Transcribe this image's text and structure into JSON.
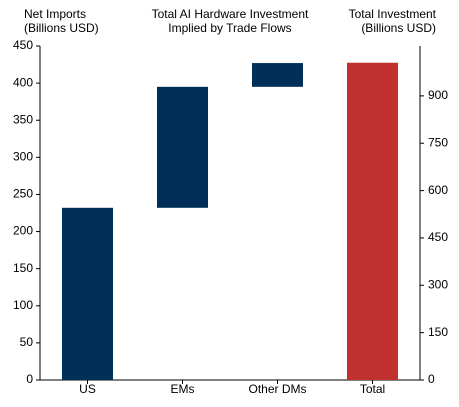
{
  "chart_data": {
    "type": "waterfall",
    "title": [
      "Total AI Hardware Investment",
      "Implied by Trade Flows"
    ],
    "ylabel": [
      "Net Imports",
      "(Billions USD)"
    ],
    "y2label": [
      "Total Investment",
      "(Billions USD)"
    ],
    "categories": [
      "US",
      "EMs",
      "Other DMs",
      "Total"
    ],
    "series": [
      {
        "values": [
          232,
          163,
          32,
          null
        ],
        "color": "#003057"
      },
      {
        "values": [
          null,
          null,
          null,
          1005
        ],
        "color": "#c0312f",
        "axis": "y2"
      }
    ],
    "ylim": [
      0,
      450
    ],
    "yticks": [
      0,
      50,
      100,
      150,
      200,
      250,
      300,
      350,
      400,
      450
    ],
    "y2lim": [
      0,
      1058
    ],
    "y2ticks": [
      0,
      150,
      300,
      450,
      600,
      750,
      900
    ]
  }
}
